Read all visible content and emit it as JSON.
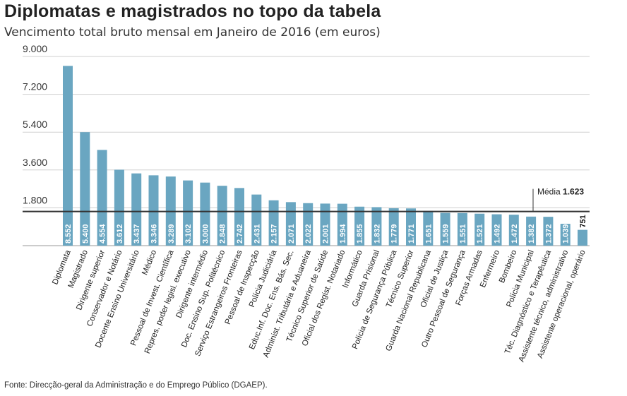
{
  "title": "Diplomatas e magistrados no topo da tabela",
  "subtitle": "Vencimento total bruto mensal em Janeiro de 2016 (em euros)",
  "source": "Fonte: Direcção-geral da Administração e do Emprego Público (DGAEP).",
  "colors": {
    "bar": "#6aa6c1",
    "average_line": "#333333",
    "grid": "#cfcfcf"
  },
  "chart_data": {
    "type": "bar",
    "ylim": [
      0,
      9000
    ],
    "yticks": [
      {
        "value": 1800,
        "label": "1.800"
      },
      {
        "value": 3600,
        "label": "3.600"
      },
      {
        "value": 5400,
        "label": "5.400"
      },
      {
        "value": 7200,
        "label": "7.200"
      },
      {
        "value": 9000,
        "label": "9.000"
      }
    ],
    "grid": true,
    "average": {
      "value": 1623,
      "label": "Média",
      "value_label": "1.623"
    },
    "categories": [
      "Diplomata",
      "Magistrado",
      "Dirigente superior",
      "Conservador e Notário",
      "Docente Ensino Universitário",
      "Médico",
      "Pessoal de Invest. Científica",
      "Repres. poder legisl. executivo",
      "Dirigente intermédio",
      "Doc. Ensino Sup. Politécnico",
      "Serviço Estrangeiros Fronteiras",
      "Pessoal de Inspecção",
      "Polícia Judiciária",
      "Educ.Inf. Doc. Ens. Bás. Sec.",
      "Administ. Tributária e Aduaneira",
      "Técnico Superior de Saúde",
      "Oficial dos Regist. Notariado",
      "Informático",
      "Guarda Prisional",
      "Polícia de Segurança Pública",
      "Técnico Superior",
      "Guarda Nacional Republicana",
      "Oficial de Justiça",
      "Outro Pessoal de Segurança",
      "Forças Armadas",
      "Enfermeiro",
      "Bombeiro",
      "Polícia Municipal",
      "Téc. Diagnóstico e Terapêutica",
      "Assistente técnico, administrativo",
      "Assistente operacional, operário"
    ],
    "values": [
      8552,
      5400,
      4554,
      3612,
      3437,
      3346,
      3289,
      3102,
      3000,
      2848,
      2742,
      2431,
      2157,
      2071,
      2022,
      2001,
      1994,
      1855,
      1832,
      1779,
      1771,
      1651,
      1559,
      1551,
      1521,
      1492,
      1472,
      1382,
      1372,
      1039,
      751
    ],
    "value_labels": [
      "8.552",
      "5.400",
      "4.554",
      "3.612",
      "3.437",
      "3.346",
      "3.289",
      "3.102",
      "3.000",
      "2.848",
      "2.742",
      "2.431",
      "2.157",
      "2.071",
      "2.022",
      "2.001",
      "1.994",
      "1.855",
      "1.832",
      "1.779",
      "1.771",
      "1.651",
      "1.559",
      "1.551",
      "1.521",
      "1.492",
      "1.472",
      "1.382",
      "1.372",
      "1.039",
      "751"
    ]
  }
}
